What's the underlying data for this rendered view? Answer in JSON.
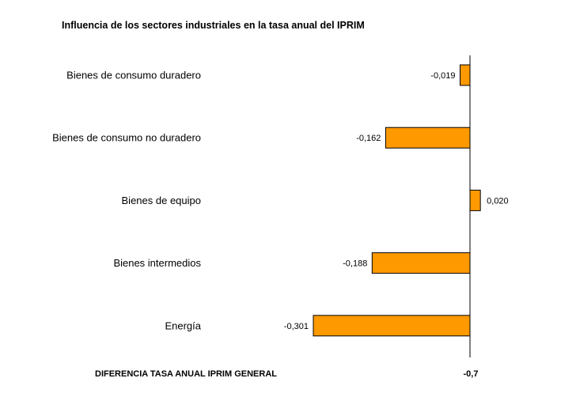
{
  "chart_data": {
    "type": "bar",
    "orientation": "horizontal",
    "title": "Influencia de los sectores industriales en la tasa anual del IPRIM",
    "categories": [
      "Bienes de consumo duradero",
      "Bienes de consumo no duradero",
      "Bienes de equipo",
      "Bienes intermedios",
      "Energía"
    ],
    "values": [
      -0.019,
      -0.162,
      0.02,
      -0.188,
      -0.301
    ],
    "value_labels": [
      "-0,019",
      "-0,162",
      "0,020",
      "-0,188",
      "-0,301"
    ],
    "xlim": [
      -0.301,
      0.02
    ],
    "bar_color": "#FF9900",
    "edge_color": "#000000",
    "footer_label": "DIFERENCIA TASA ANUAL IPRIM GENERAL",
    "footer_value": "-0,7"
  }
}
